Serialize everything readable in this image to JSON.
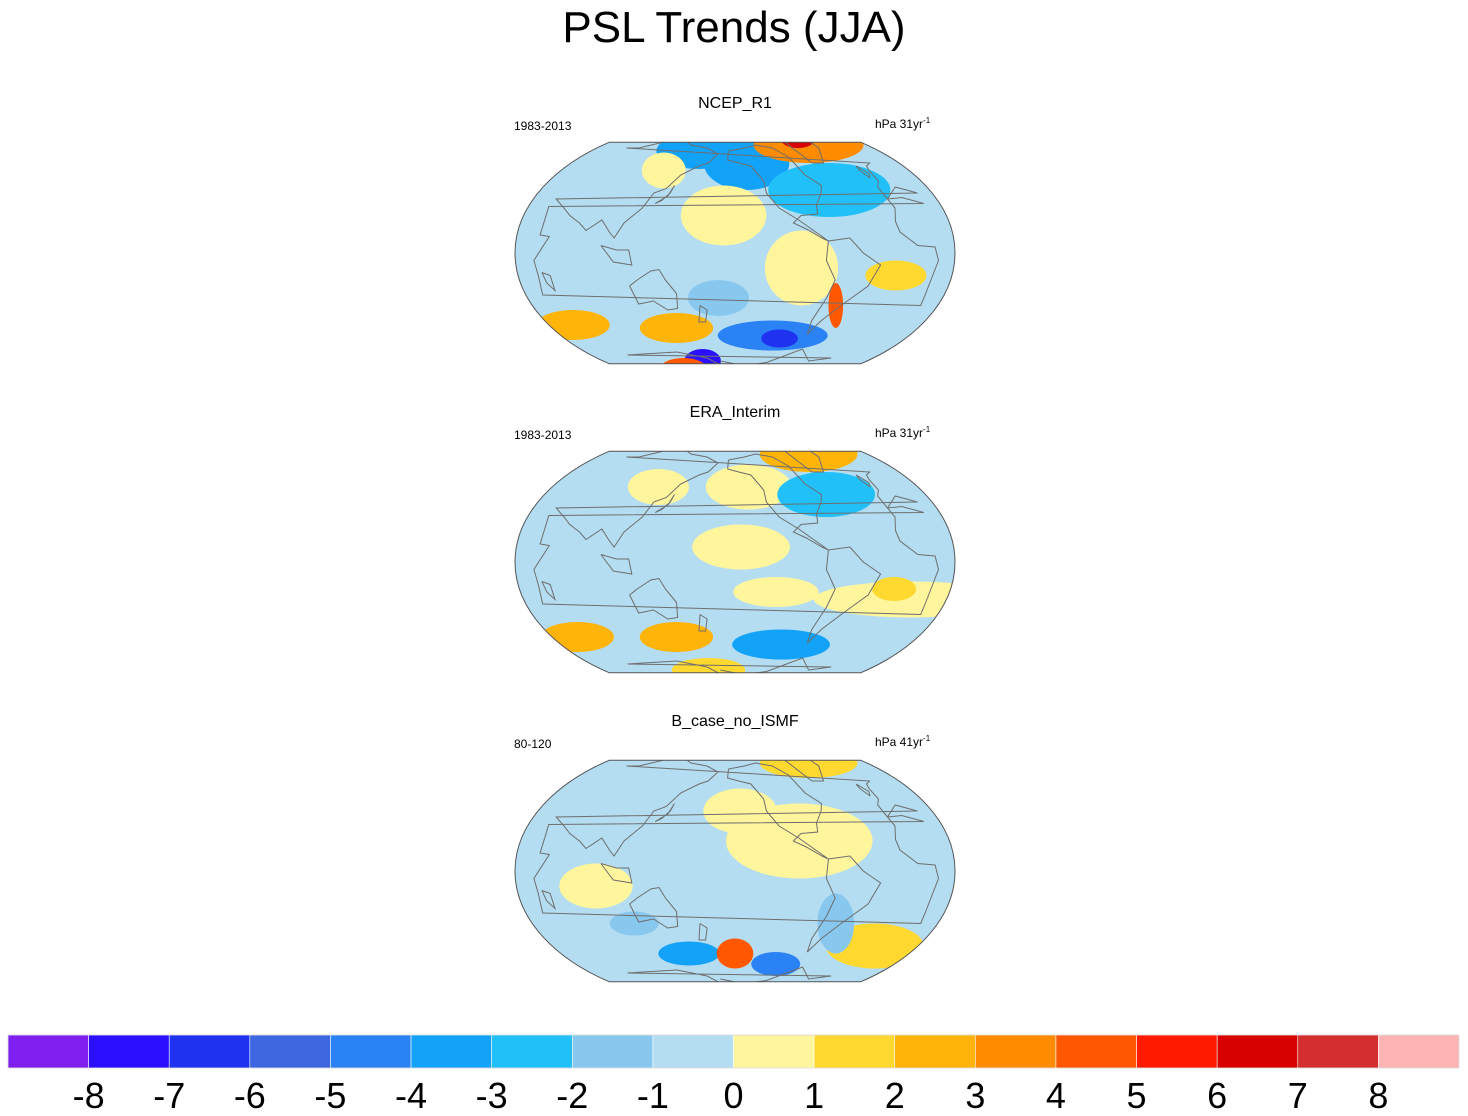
{
  "chart_data": {
    "type": "heatmap",
    "title": "PSL Trends (JJA)",
    "colorbar": {
      "levels": [
        -8,
        -7,
        -6,
        -5,
        -4,
        -3,
        -2,
        -1,
        0,
        1,
        2,
        3,
        4,
        5,
        6,
        7,
        8
      ],
      "tick_labels": [
        "-8",
        "-7",
        "-6",
        "-5",
        "-4",
        "-3",
        "-2",
        "-1",
        "0",
        "1",
        "2",
        "3",
        "4",
        "5",
        "6",
        "7",
        "8"
      ],
      "colors": [
        "#7f20f0",
        "#2a10ff",
        "#1e32f0",
        "#3d66e0",
        "#2a82f5",
        "#12a2f8",
        "#22c0f8",
        "#88c8ee",
        "#b4ddf2",
        "#fff59c",
        "#ffd830",
        "#ffb40a",
        "#ff8c00",
        "#ff5800",
        "#ff1a00",
        "#d80000",
        "#d42e2e",
        "#ffb4b4"
      ]
    },
    "panels": [
      {
        "title": "NCEP_R1",
        "period": "1983-2013",
        "units": "hPa 31yr",
        "units_exp": "-1",
        "features": [
          {
            "lon": 0,
            "lat": 15,
            "rx": 95,
            "ry": 18,
            "value": -0.5
          },
          {
            "lon": -140,
            "lat": 60,
            "rx": 35,
            "ry": 18,
            "value": -3.5
          },
          {
            "lon": 150,
            "lat": 68,
            "rx": 35,
            "ry": 12,
            "value": -3.5
          },
          {
            "lon": -60,
            "lat": 42,
            "rx": 50,
            "ry": 18,
            "value": -2.5
          },
          {
            "lon": -30,
            "lat": 72,
            "rx": 45,
            "ry": 12,
            "value": 3.5
          },
          {
            "lon": -35,
            "lat": 76,
            "rx": 14,
            "ry": 6,
            "value": 6.5
          },
          {
            "lon": 120,
            "lat": 55,
            "rx": 18,
            "ry": 12,
            "value": 0.5
          },
          {
            "lon": -165,
            "lat": 25,
            "rx": 35,
            "ry": 20,
            "value": 0.5
          },
          {
            "lon": -100,
            "lat": -10,
            "rx": 30,
            "ry": 25,
            "value": 0.5
          },
          {
            "lon": -20,
            "lat": -15,
            "rx": 25,
            "ry": 10,
            "value": 1.5
          },
          {
            "lon": -110,
            "lat": -55,
            "rx": 45,
            "ry": 10,
            "value": -4.5
          },
          {
            "lon": -100,
            "lat": -57,
            "rx": 15,
            "ry": 6,
            "value": -6.5
          },
          {
            "lon": 150,
            "lat": -72,
            "rx": 15,
            "ry": 8,
            "value": -7.5
          },
          {
            "lon": 140,
            "lat": -50,
            "rx": 30,
            "ry": 10,
            "value": 2.5
          },
          {
            "lon": 100,
            "lat": -78,
            "rx": 20,
            "ry": 8,
            "value": 4.5
          },
          {
            "lon": 30,
            "lat": -48,
            "rx": 30,
            "ry": 10,
            "value": 2.5
          },
          {
            "lon": -60,
            "lat": -35,
            "rx": 6,
            "ry": 15,
            "value": 4.5
          },
          {
            "lon": -170,
            "lat": -30,
            "rx": 25,
            "ry": 12,
            "value": -1.5
          }
        ]
      },
      {
        "title": "ERA_Interim",
        "period": "1983-2013",
        "units": "hPa 31yr",
        "units_exp": "-1",
        "features": [
          {
            "lon": -140,
            "lat": 50,
            "rx": 35,
            "ry": 15,
            "value": 0.5
          },
          {
            "lon": -150,
            "lat": 10,
            "rx": 40,
            "ry": 15,
            "value": 0.5
          },
          {
            "lon": -30,
            "lat": 72,
            "rx": 40,
            "ry": 12,
            "value": 2.5
          },
          {
            "lon": -60,
            "lat": 45,
            "rx": 40,
            "ry": 15,
            "value": -2.5
          },
          {
            "lon": 120,
            "lat": 50,
            "rx": 25,
            "ry": 12,
            "value": 0.5
          },
          {
            "lon": 0,
            "lat": -25,
            "rx": 80,
            "ry": 12,
            "value": 0.5
          },
          {
            "lon": -20,
            "lat": -18,
            "rx": 18,
            "ry": 8,
            "value": 1.5
          },
          {
            "lon": -120,
            "lat": -20,
            "rx": 35,
            "ry": 10,
            "value": 0.5
          },
          {
            "lon": -100,
            "lat": -55,
            "rx": 40,
            "ry": 10,
            "value": -3.5
          },
          {
            "lon": 140,
            "lat": -50,
            "rx": 30,
            "ry": 10,
            "value": 2.5
          },
          {
            "lon": 30,
            "lat": -50,
            "rx": 30,
            "ry": 10,
            "value": 2.5
          },
          {
            "lon": 160,
            "lat": -72,
            "rx": 30,
            "ry": 8,
            "value": 1.5
          }
        ]
      },
      {
        "title": "B_case_no_ISMF",
        "period": "80-120",
        "units": "hPa 41yr",
        "units_exp": "-1",
        "features": [
          {
            "lon": -100,
            "lat": 20,
            "rx": 60,
            "ry": 25,
            "value": 0.5
          },
          {
            "lon": -150,
            "lat": 40,
            "rx": 30,
            "ry": 15,
            "value": 0.5
          },
          {
            "lon": 90,
            "lat": -10,
            "rx": 30,
            "ry": 15,
            "value": 0.5
          },
          {
            "lon": -30,
            "lat": 72,
            "rx": 40,
            "ry": 10,
            "value": 1.5
          },
          {
            "lon": 150,
            "lat": -55,
            "rx": 25,
            "ry": 8,
            "value": -3.5
          },
          {
            "lon": -155,
            "lat": -55,
            "rx": 15,
            "ry": 10,
            "value": 4.5
          },
          {
            "lon": -100,
            "lat": -62,
            "rx": 20,
            "ry": 8,
            "value": -4.5
          },
          {
            "lon": 0,
            "lat": -50,
            "rx": 40,
            "ry": 15,
            "value": 1.5
          },
          {
            "lon": 110,
            "lat": -35,
            "rx": 20,
            "ry": 8,
            "value": -1.5
          },
          {
            "lon": -60,
            "lat": -35,
            "rx": 15,
            "ry": 20,
            "value": -1.5
          }
        ]
      }
    ]
  },
  "colors": {
    "ocean_background": "#b4ddf2",
    "coastline": "#6e6e6e",
    "map_border": "#555555"
  }
}
